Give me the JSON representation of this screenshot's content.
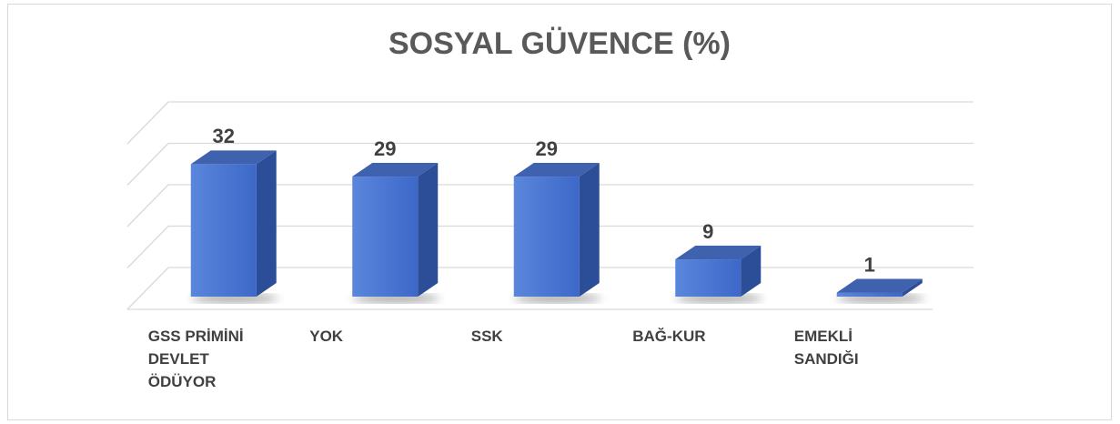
{
  "chart_data": {
    "type": "bar3d",
    "title": "SOSYAL GÜVENCE (%)",
    "categories": [
      "GSS PRİMİNİ DEVLET ÖDÜYOR",
      "YOK",
      "SSK",
      "BAĞ-KUR",
      "EMEKLİ SANDIĞI"
    ],
    "values": [
      32,
      29,
      29,
      9,
      1
    ],
    "color": "#4472c4",
    "ylim": [
      0,
      40
    ],
    "yticks": [
      0,
      10,
      20,
      30,
      40
    ],
    "grid": true
  }
}
